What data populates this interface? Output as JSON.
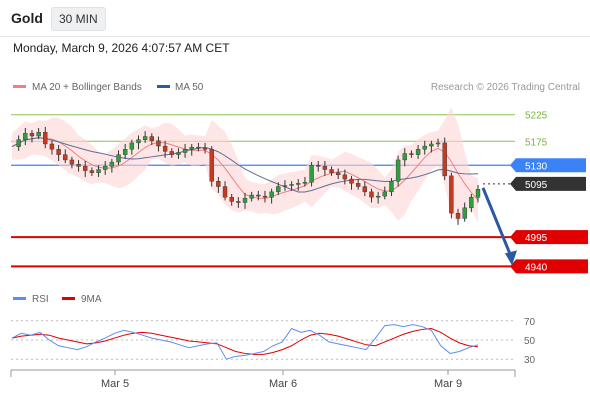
{
  "header": {
    "title": "Gold",
    "timeframe": "30 MIN"
  },
  "datetime": "Monday, March 9, 2026 4:07:57 AM CET",
  "legend": {
    "bb": {
      "label": "MA 20 + Bollinger Bands",
      "color": "#f08080"
    },
    "ma50": {
      "label": "MA 50",
      "color": "#2c5aa0"
    }
  },
  "research": "Research © 2026 Trading Central",
  "rsi_legend": {
    "rsi": {
      "label": "RSI",
      "color": "#5b8def"
    },
    "ma": {
      "label": "9MA",
      "color": "#e00000"
    }
  },
  "chart_data": {
    "type": "candlestick",
    "price_ylim": [
      4905,
      5262
    ],
    "x_ticks": [
      "Mar 5",
      "Mar 6",
      "Mar 9"
    ],
    "levels": [
      {
        "label": "5225",
        "value": 5225,
        "style": "resistance-green"
      },
      {
        "label": "5175",
        "value": 5175,
        "style": "resistance-green"
      },
      {
        "label": "5130",
        "value": 5130,
        "style": "pivot-blue"
      },
      {
        "label": "5095",
        "value": 5095,
        "style": "last-price"
      },
      {
        "label": "4995",
        "value": 4995,
        "style": "support-red"
      },
      {
        "label": "4940",
        "value": 4940,
        "style": "support-red"
      }
    ],
    "price_path": [
      5165,
      5178,
      5190,
      5185,
      5192,
      5170,
      5160,
      5150,
      5140,
      5132,
      5128,
      5120,
      5116,
      5122,
      5128,
      5136,
      5150,
      5160,
      5172,
      5178,
      5184,
      5176,
      5166,
      5156,
      5150,
      5154,
      5160,
      5164,
      5162,
      5160,
      5100,
      5090,
      5070,
      5062,
      5060,
      5068,
      5074,
      5072,
      5070,
      5080,
      5090,
      5092,
      5094,
      5096,
      5098,
      5130,
      5128,
      5122,
      5116,
      5112,
      5104,
      5096,
      5090,
      5080,
      5070,
      5072,
      5080,
      5100,
      5140,
      5152,
      5150,
      5160,
      5166,
      5170,
      5172,
      5110,
      5040,
      5030,
      5050,
      5070,
      5085
    ],
    "arrow": {
      "from_value": 5095,
      "to_value": 4940,
      "color": "#2c5aa0"
    },
    "rsi": {
      "ylim": [
        25,
        75
      ],
      "ticks": [
        70,
        50,
        30
      ],
      "rsi_path": [
        52,
        57,
        55,
        58,
        50,
        44,
        42,
        40,
        43,
        48,
        52,
        57,
        60,
        58,
        55,
        52,
        50,
        48,
        45,
        42,
        44,
        46,
        47,
        30,
        33,
        34,
        36,
        38,
        44,
        48,
        62,
        58,
        60,
        55,
        48,
        46,
        44,
        42,
        40,
        52,
        65,
        66,
        64,
        66,
        64,
        60,
        44,
        36,
        38,
        42,
        45
      ],
      "ma_path": [
        52,
        54,
        55,
        56,
        55,
        52,
        50,
        48,
        46,
        47,
        49,
        52,
        55,
        57,
        58,
        57,
        55,
        53,
        51,
        49,
        48,
        47,
        46,
        42,
        38,
        36,
        35,
        35,
        37,
        40,
        44,
        50,
        55,
        57,
        56,
        54,
        51,
        48,
        45,
        44,
        48,
        52,
        56,
        59,
        61,
        62,
        58,
        52,
        47,
        44,
        43
      ]
    }
  }
}
